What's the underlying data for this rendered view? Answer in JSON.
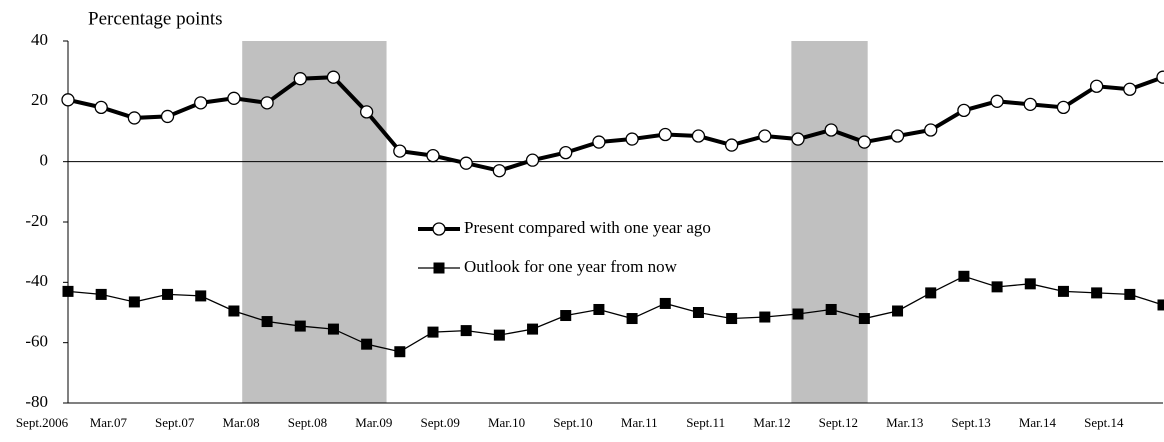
{
  "chart_data": {
    "type": "line",
    "y_axis_label": "Percentage points",
    "categories": [
      "Sept.2006",
      null,
      "Mar.07",
      null,
      "Sept.07",
      null,
      "Mar.08",
      null,
      "Sept.08",
      null,
      "Mar.09",
      null,
      "Sept.09",
      null,
      "Mar.10",
      null,
      "Sept.10",
      null,
      "Mar.11",
      null,
      "Sept.11",
      null,
      "Mar.12",
      null,
      "Sept.12",
      null,
      "Mar.13",
      null,
      "Sept.13",
      null,
      "Mar.14",
      null,
      "Sept.14",
      null
    ],
    "series": [
      {
        "name": "Present compared with one year ago",
        "color": "#000000",
        "marker": "circle",
        "values": [
          20.5,
          18,
          14.5,
          15,
          19.5,
          21,
          19.5,
          27.5,
          28,
          16.5,
          3.5,
          2,
          -0.5,
          -3,
          0.5,
          3,
          6.5,
          7.5,
          9,
          8.5,
          5.5,
          8.5,
          7.5,
          10.5,
          6.5,
          8.5,
          10.5,
          17,
          20,
          19,
          18,
          25,
          24,
          28
        ]
      },
      {
        "name": "Outlook for one year from now",
        "color": "#000000",
        "marker": "square",
        "values": [
          -43,
          -44,
          -46.5,
          -44,
          -44.5,
          -49.5,
          -53,
          -54.5,
          -55.5,
          -60.5,
          -63,
          -56.5,
          -56,
          -57.5,
          -55.5,
          -51,
          -49,
          -52,
          -47,
          -50,
          -52,
          -51.5,
          -50.5,
          -49,
          -52,
          -49.5,
          -43.5,
          -38,
          -41.5,
          -40.5,
          -43,
          -43.5,
          -44,
          -47.5
        ]
      }
    ],
    "shaded_ranges": [
      [
        5.25,
        9.6
      ],
      [
        21.8,
        24.1
      ]
    ],
    "shade_color": "#c0c0c0",
    "ylim": [
      -80,
      40
    ],
    "yticks": [
      -80,
      -60,
      -40,
      -20,
      0,
      20,
      40
    ]
  }
}
